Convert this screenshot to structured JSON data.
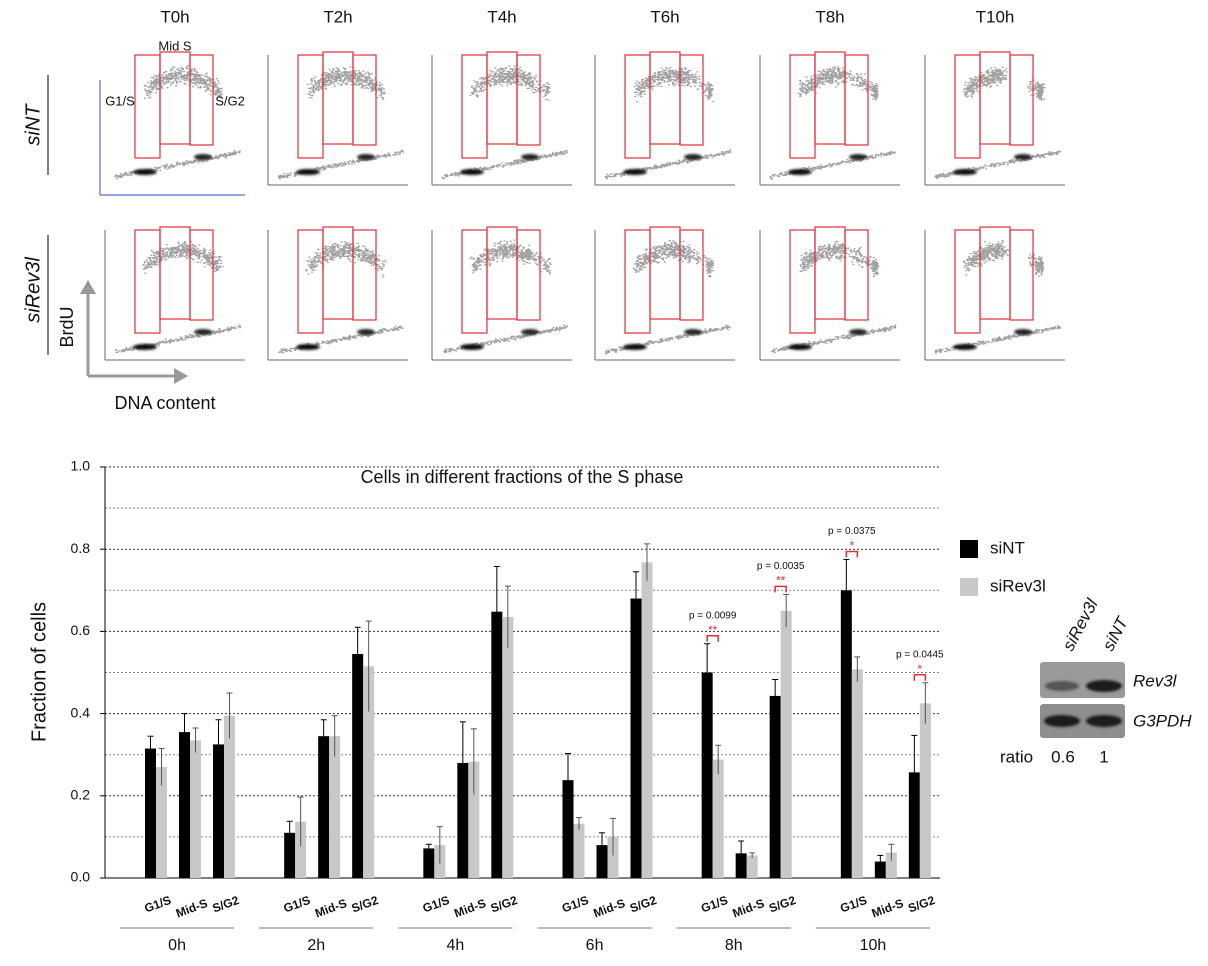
{
  "panel_a": {
    "timepoints": [
      "T0h",
      "T2h",
      "T4h",
      "T6h",
      "T8h",
      "T10h"
    ],
    "rows": [
      "siNT",
      "siRev3l"
    ],
    "gate_labels": [
      "Mid S",
      "G1/S",
      "S/G2"
    ],
    "y_axis": "BrdU",
    "x_axis": "DNA content"
  },
  "chart_data": {
    "type": "bar",
    "title": "Cells in different fractions of the S phase",
    "y_label": "Fraction of cells",
    "groups": [
      "0h",
      "2h",
      "4h",
      "6h",
      "8h",
      "10h"
    ],
    "categories": [
      "G1/S",
      "Mid-S",
      "S/G2",
      "G1/S",
      "Mid-S",
      "S/G2",
      "G1/S",
      "Mid-S",
      "S/G2",
      "G1/S",
      "Mid-S",
      "S/G2",
      "G1/S",
      "Mid-S",
      "S/G2",
      "G1/S",
      "Mid-S",
      "S/G2"
    ],
    "series": [
      {
        "name": "siNT",
        "color": "#000000",
        "values": [
          0.315,
          0.355,
          0.325,
          0.11,
          0.345,
          0.545,
          0.072,
          0.28,
          0.648,
          0.238,
          0.08,
          0.68,
          0.5,
          0.06,
          0.443,
          0.7,
          0.04,
          0.257
        ],
        "errors": [
          0.03,
          0.045,
          0.06,
          0.028,
          0.04,
          0.065,
          0.01,
          0.1,
          0.11,
          0.065,
          0.03,
          0.065,
          0.07,
          0.03,
          0.04,
          0.075,
          0.015,
          0.09
        ]
      },
      {
        "name": "siRev3l",
        "color": "#c8c8c8",
        "values": [
          0.27,
          0.335,
          0.395,
          0.137,
          0.345,
          0.515,
          0.08,
          0.283,
          0.635,
          0.132,
          0.1,
          0.768,
          0.288,
          0.055,
          0.65,
          0.508,
          0.062,
          0.425
        ],
        "errors": [
          0.045,
          0.03,
          0.055,
          0.06,
          0.05,
          0.11,
          0.045,
          0.08,
          0.075,
          0.015,
          0.045,
          0.045,
          0.035,
          0.006,
          0.04,
          0.03,
          0.02,
          0.05
        ]
      }
    ],
    "ylim": [
      0,
      1
    ],
    "yticks": [
      {
        "value": 0,
        "label": "0.0"
      },
      0.2,
      0.4,
      0.6,
      0.8,
      {
        "value": 1,
        "label": "1.0"
      }
    ],
    "minor_grid": [
      0.1,
      0.3,
      0.5,
      0.7,
      0.9
    ],
    "grid": true,
    "annotations": [
      {
        "p": "p = 0.0099",
        "stars": "**"
      },
      {
        "p": "p = 0.0035",
        "stars": "**"
      },
      {
        "p": "p = 0.0375",
        "stars": "*"
      },
      {
        "p": "p = 0.0445",
        "stars": "*"
      }
    ]
  },
  "blot": {
    "lanes": [
      "siRev3l",
      "siNT"
    ],
    "bands": [
      "Rev3l",
      "G3PDH"
    ],
    "ratio_label": "ratio",
    "ratios": [
      0.6,
      1
    ]
  }
}
